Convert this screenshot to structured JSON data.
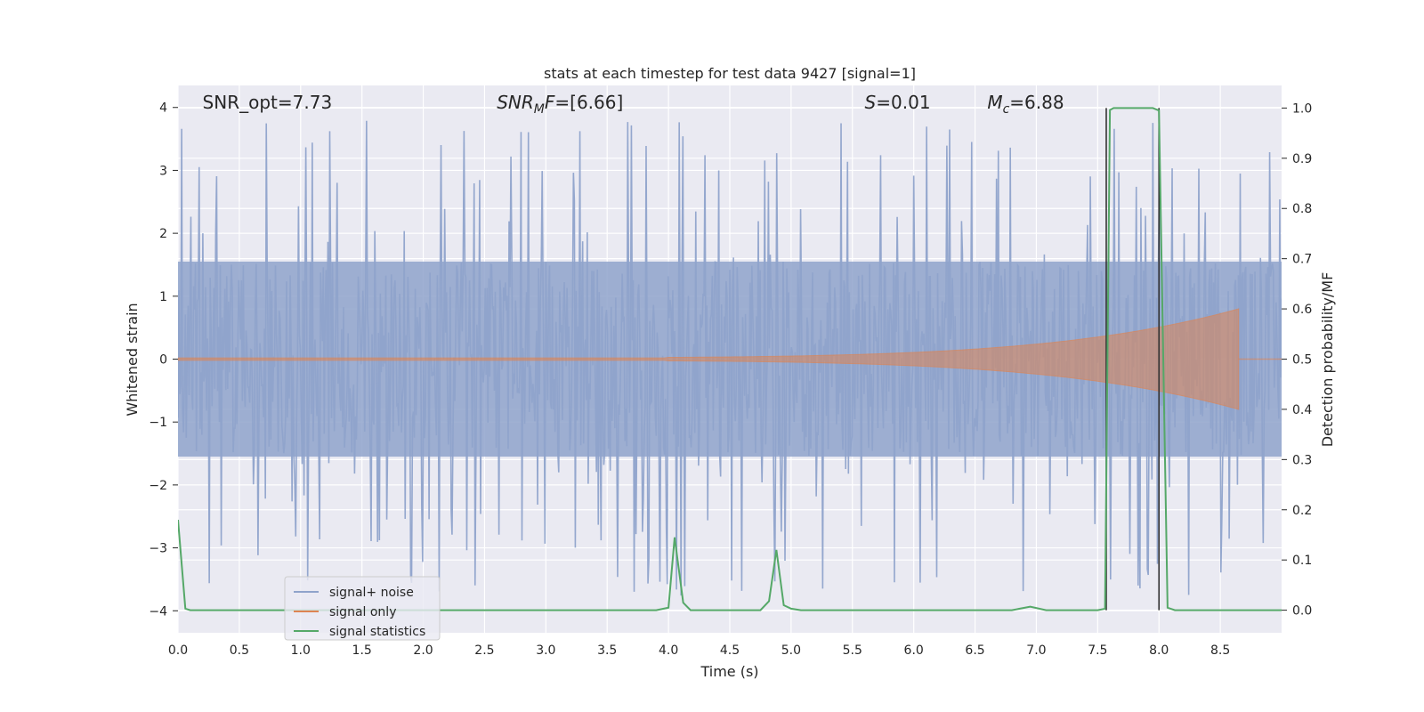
{
  "chart_data": {
    "type": "line",
    "title": "stats at each timestep for test data 9427 [signal=1]",
    "xlabel": "Time (s)",
    "ylabel": "Whitened strain",
    "y2label": "Detection probability/MF",
    "xlim": [
      0.0,
      9.0
    ],
    "ylim": [
      -4.35,
      4.35
    ],
    "y2lim": [
      -0.045,
      1.045
    ],
    "x_ticks": [
      0.0,
      0.5,
      1.0,
      1.5,
      2.0,
      2.5,
      3.0,
      3.5,
      4.0,
      4.5,
      5.0,
      5.5,
      6.0,
      6.5,
      7.0,
      7.5,
      8.0,
      8.5
    ],
    "x_tick_labels": [
      "0.0",
      "0.5",
      "1.0",
      "1.5",
      "2.0",
      "2.5",
      "3.0",
      "3.5",
      "4.0",
      "4.5",
      "5.0",
      "5.5",
      "6.0",
      "6.5",
      "7.0",
      "7.5",
      "8.0",
      "8.5"
    ],
    "y_ticks": [
      -4,
      -3,
      -2,
      -1,
      0,
      1,
      2,
      3,
      4
    ],
    "y_tick_labels": [
      "−4",
      "−3",
      "−2",
      "−1",
      "0",
      "1",
      "2",
      "3",
      "4"
    ],
    "y2_ticks": [
      0.0,
      0.1,
      0.2,
      0.3,
      0.4,
      0.5,
      0.6,
      0.7,
      0.8,
      0.9,
      1.0
    ],
    "y2_tick_labels": [
      "0.0",
      "0.1",
      "0.2",
      "0.3",
      "0.4",
      "0.5",
      "0.6",
      "0.7",
      "0.8",
      "0.9",
      "1.0"
    ],
    "grid": true,
    "legend_position": "lower-left",
    "annotations": [
      {
        "base": "SNR_opt=7.73",
        "sub": "",
        "tail": "",
        "x": 0.2,
        "italic": false
      },
      {
        "base": "SNR",
        "sub": "M",
        "tail": "F=[6.66]",
        "x": 2.6,
        "italic": true
      },
      {
        "base": "S",
        "sub": "",
        "tail": "=0.01",
        "x": 5.6,
        "italic": true
      },
      {
        "base": "M",
        "sub": "c",
        "tail": "=6.88",
        "x": 6.6,
        "italic": true
      }
    ],
    "vlines": [
      7.57,
      8.0
    ],
    "series": [
      {
        "name": "signal+ noise",
        "color": "#8fa3cb",
        "axis": "left",
        "noise": {
          "t_start": 0.0,
          "t_end": 9.0,
          "n": 1200,
          "seed": 9427,
          "base_amp": 1.55,
          "peak_max": 3.9,
          "peak_min": -4.0
        }
      },
      {
        "name": "signal only",
        "color": "#dd8452",
        "axis": "left",
        "chirp": {
          "t_start": 0.0,
          "t_end": 8.65,
          "amp_start": 0.02,
          "amp_end": 0.8,
          "t_visible_from": 4.0
        }
      },
      {
        "name": "signal statistics",
        "color": "#55a868",
        "axis": "right",
        "x": [
          0.0,
          0.06,
          0.1,
          0.15,
          0.2,
          1.0,
          2.0,
          3.0,
          3.9,
          4.0,
          4.05,
          4.12,
          4.18,
          4.5,
          4.75,
          4.82,
          4.88,
          4.94,
          5.0,
          5.08,
          5.5,
          6.0,
          6.5,
          6.8,
          6.95,
          7.08,
          7.3,
          7.5,
          7.56,
          7.6,
          7.63,
          7.7,
          7.95,
          8.0,
          8.07,
          8.13,
          8.5,
          9.0
        ],
        "y": [
          0.18,
          0.003,
          0.0,
          0.0,
          0.0,
          0.0,
          0.0,
          0.0,
          0.0,
          0.005,
          0.145,
          0.015,
          0.0,
          0.0,
          0.0,
          0.018,
          0.12,
          0.01,
          0.003,
          0.0,
          0.0,
          0.0,
          0.0,
          0.0,
          0.007,
          0.0,
          0.0,
          0.0,
          0.003,
          0.996,
          1.0,
          1.0,
          1.0,
          0.995,
          0.005,
          0.0,
          0.0,
          0.0
        ]
      }
    ]
  }
}
